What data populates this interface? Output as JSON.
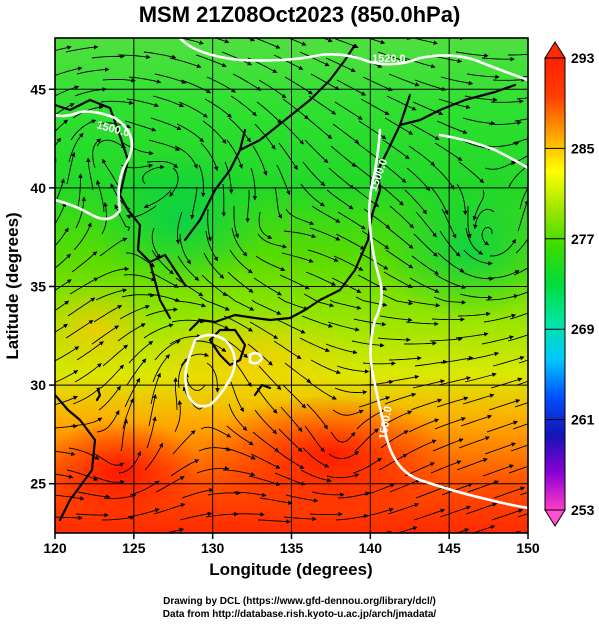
{
  "title": "MSM 21Z08Oct2023 (850.0hPa)",
  "x_axis": {
    "label": "Longitude (degrees)",
    "range": [
      120,
      150
    ],
    "ticks": [
      120,
      125,
      130,
      135,
      140,
      145,
      150
    ]
  },
  "y_axis": {
    "label": "Latitude  (degrees)",
    "range": [
      22.5,
      47.6
    ],
    "ticks": [
      25,
      30,
      35,
      40,
      45
    ]
  },
  "colorbar": {
    "range": [
      253,
      293
    ],
    "labels": [
      253,
      261,
      269,
      277,
      285,
      293
    ],
    "colors": [
      "#ff3cc8",
      "#8a00d6",
      "#1414b4",
      "#0050ff",
      "#00c8ff",
      "#00e6a0",
      "#00dc3c",
      "#3cdc00",
      "#a0e600",
      "#ffff00",
      "#ffa000",
      "#ff3c00",
      "#ff2000"
    ]
  },
  "contours": [
    {
      "label": "1520.0"
    },
    {
      "label": "1500.0"
    },
    {
      "label": "1500.0"
    },
    {
      "label": "1500.0"
    }
  ],
  "footer": {
    "line1": "Drawing by DCL (https://www.gfd-dennou.org/library/dcl/)",
    "line2": "Data from http://database.rish.kyoto-u.ac.jp/arch/jmadata/"
  },
  "colors": {
    "warm": "#ff3c00",
    "mid": "#a0e600",
    "cool": "#00dc3c",
    "contour": "#ffffff",
    "coast": "#000000"
  }
}
